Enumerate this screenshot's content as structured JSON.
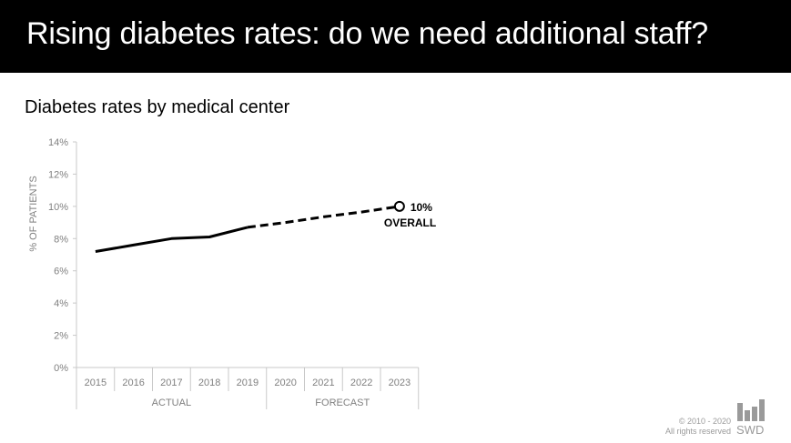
{
  "slide": {
    "title": "Rising diabetes rates: do we need additional staff?"
  },
  "footer": {
    "copyright": "© 2010 - 2020",
    "rights": "All rights reserved",
    "brand": "SWD"
  },
  "colors": {
    "title_bar": "#000000",
    "line": "#000000",
    "axis_text": "#808080",
    "axis_line": "#c8c8c8"
  },
  "chart_data": {
    "type": "line",
    "title": "Diabetes rates by medical center",
    "xlabel": "",
    "ylabel": "% OF PATIENTS",
    "x": [
      "2015",
      "2016",
      "2017",
      "2018",
      "2019",
      "2020",
      "2021",
      "2022",
      "2023"
    ],
    "ylim": [
      0,
      14
    ],
    "yticks": [
      "0%",
      "2%",
      "4%",
      "6%",
      "8%",
      "10%",
      "12%",
      "14%"
    ],
    "grid": false,
    "legend": "none",
    "series": [
      {
        "style": "solid",
        "x": [
          "2015",
          "2016",
          "2017",
          "2018",
          "2019"
        ],
        "values": [
          7.2,
          7.6,
          8.0,
          8.1,
          8.7
        ]
      },
      {
        "style": "dashed",
        "x": [
          "2019",
          "2020",
          "2021",
          "2022",
          "2023"
        ],
        "values": [
          8.7,
          9.0,
          9.35,
          9.65,
          10.0
        ]
      }
    ],
    "groups": [
      {
        "label": "ACTUAL",
        "from": "2015",
        "to": "2019"
      },
      {
        "label": "FORECAST",
        "from": "2020",
        "to": "2023"
      }
    ],
    "annotations": [
      {
        "x": "2023",
        "value": 10.0,
        "lines": [
          "10%",
          "OVERALL"
        ]
      }
    ]
  }
}
